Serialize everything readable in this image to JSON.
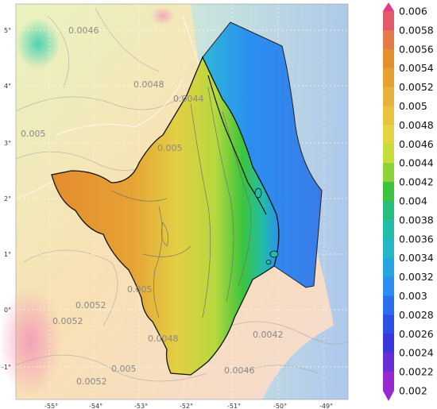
{
  "map": {
    "lon_ticks": [
      "-55°",
      "-54°",
      "-53°",
      "-52°",
      "-51°",
      "-50°",
      "-49°"
    ],
    "lat_ticks": [
      "5°",
      "4°",
      "3°",
      "2°",
      "1°",
      "0°",
      "-1°"
    ],
    "contour_labels": [
      "0.0046",
      "0.0048",
      "0.0044",
      "0.005",
      "0.005",
      "0.005",
      "0.0052",
      "0.0052",
      "0.0048",
      "0.005",
      "0.0052",
      "0.0042",
      "0.0046"
    ]
  },
  "colorbar": {
    "labels": [
      "0.006",
      "0.0058",
      "0.0056",
      "0.0054",
      "0.0052",
      "0.005",
      "0.0048",
      "0.0046",
      "0.0044",
      "0.0042",
      "0.004",
      "0.0038",
      "0.0036",
      "0.0034",
      "0.0032",
      "0.003",
      "0.0028",
      "0.0026",
      "0.0024",
      "0.0022",
      "0.002"
    ],
    "colors": [
      "#e8378b",
      "#e35a6b",
      "#e27a4a",
      "#e4902f",
      "#e6a030",
      "#e8b23a",
      "#e8c43e",
      "#e4d443",
      "#c8dc3a",
      "#8ad43a",
      "#3cc43c",
      "#25be7c",
      "#22bda8",
      "#23b7c8",
      "#26a6e0",
      "#2a8ff0",
      "#2b6fee",
      "#2c4fe6",
      "#3a36dc",
      "#6a2ed8",
      "#9a28d0"
    ]
  }
}
